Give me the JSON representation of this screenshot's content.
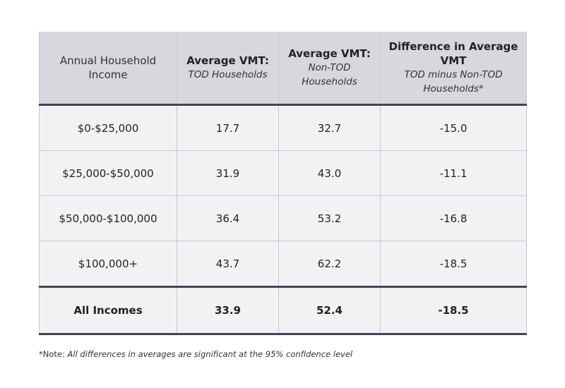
{
  "header": {
    "col1": "Annual Household Income",
    "col2_title": "Average VMT:",
    "col2_sub": "TOD Households",
    "col3_title": "Average VMT:",
    "col3_sub": "Non-TOD Households",
    "col4_title": "Difference in Average VMT",
    "col4_sub": "TOD minus Non-TOD Households*"
  },
  "rows": [
    {
      "income": "$0-$25,000",
      "tod": "17.7",
      "non_tod": "32.7",
      "diff": "-15.0"
    },
    {
      "income": "$25,000-$50,000",
      "tod": "31.9",
      "non_tod": "43.0",
      "diff": "-11.1"
    },
    {
      "income": "$50,000-$100,000",
      "tod": "36.4",
      "non_tod": "53.2",
      "diff": "-16.8"
    },
    {
      "income": "$100,000+",
      "tod": "43.7",
      "non_tod": "62.2",
      "diff": "-18.5"
    }
  ],
  "total": {
    "income": "All Incomes",
    "tod": "33.9",
    "non_tod": "52.4",
    "diff": "-18.5"
  },
  "note": {
    "prefix": "*Note: ",
    "text": "All differences in averages are significant at the 95% confidence level"
  }
}
